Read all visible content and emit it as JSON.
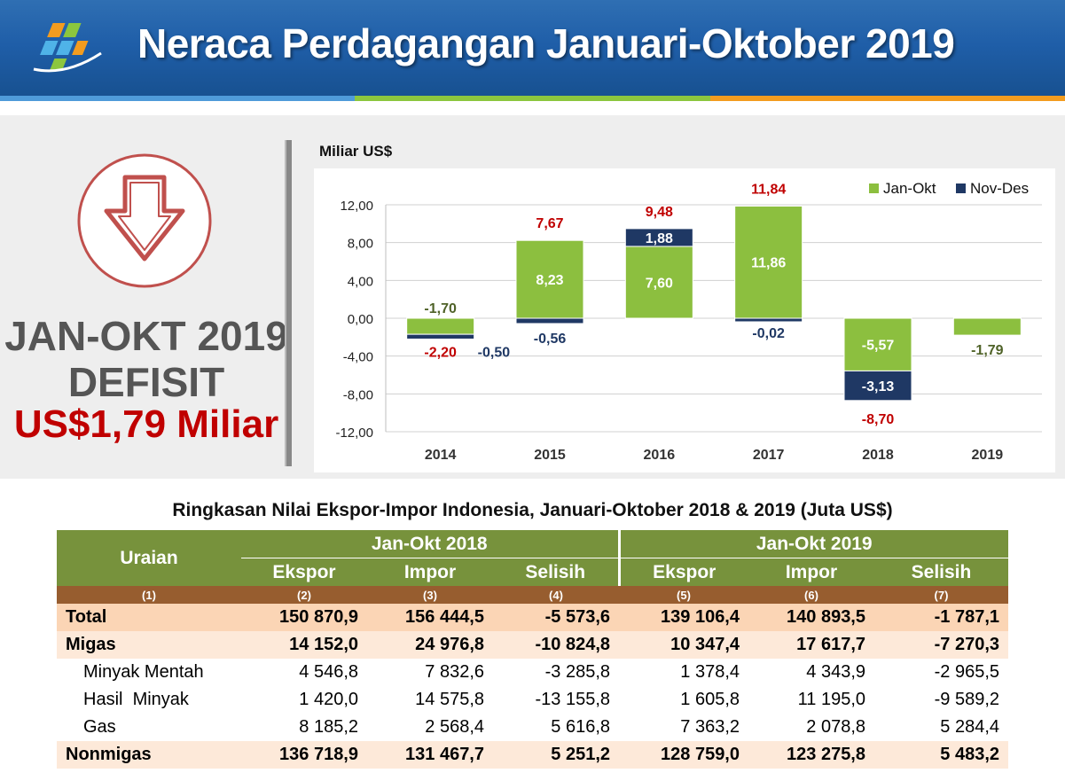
{
  "header": {
    "title": "Neraca Perdagangan Januari-Oktober 2019",
    "logo_icon": "bps-logo-icon",
    "colors": {
      "bar_blue": "#1f5ea8",
      "strip": [
        "#4f9bd9",
        "#8cc63e",
        "#f39c1f"
      ]
    }
  },
  "summary": {
    "line1": "JAN-OKT 2019",
    "line2": "DEFISIT",
    "line3": "US$1,79 Miliar",
    "icon": "down-arrow-icon",
    "colors": {
      "red": "#c00000",
      "gray": "#555555"
    }
  },
  "chart_data": {
    "type": "bar",
    "stacked": true,
    "ylabel": "Miliar US$",
    "ylim": [
      -12,
      12
    ],
    "yticks": [
      "12,00",
      "8,00",
      "4,00",
      "0,00",
      "-4,00",
      "-8,00",
      "-12,00"
    ],
    "ytick_values": [
      12,
      8,
      4,
      0,
      -4,
      -8,
      -12
    ],
    "grid": true,
    "legend_position": "top-right",
    "categories": [
      "2014",
      "2015",
      "2016",
      "2017",
      "2018",
      "2019"
    ],
    "series": [
      {
        "name": "Jan-Okt",
        "color": "#8cbf3f",
        "values": [
          -1.7,
          8.23,
          7.6,
          11.86,
          -5.57,
          -1.79
        ],
        "labels": [
          "-1,70",
          "8,23",
          "7,60",
          "11,86",
          "-5,57",
          "-1,79"
        ]
      },
      {
        "name": "Nov-Des",
        "color": "#1f3864",
        "values": [
          -0.5,
          -0.56,
          1.88,
          -0.02,
          -3.13,
          null
        ],
        "labels": [
          "-0,50",
          "-0,56",
          "1,88",
          "-0,02",
          "-3,13",
          ""
        ]
      }
    ],
    "totals": [
      -2.2,
      7.67,
      9.48,
      11.84,
      -8.7,
      null
    ],
    "total_labels": [
      "-2,20",
      "7,67",
      "9,48",
      "11,84",
      "-8,70",
      ""
    ]
  },
  "table": {
    "title": "Ringkasan Nilai Ekspor-Impor Indonesia, Januari-Oktober 2018 & 2019 (Juta US$)",
    "col_uraian": "Uraian",
    "period1": "Jan-Okt 2018",
    "period2": "Jan-Okt 2019",
    "sub_headers": [
      "Ekspor",
      "Impor",
      "Selisih",
      "Ekspor",
      "Impor",
      "Selisih"
    ],
    "col_numbers": [
      "(1)",
      "(2)",
      "(3)",
      "(4)",
      "(5)",
      "(6)",
      "(7)"
    ],
    "rows": [
      {
        "label": "Total",
        "values": [
          "150 870,9",
          "156 444,5",
          "-5 573,6",
          "139 106,4",
          "140 893,5",
          "-1 787,1"
        ]
      },
      {
        "label": "Migas",
        "values": [
          "14 152,0",
          "24 976,8",
          "-10 824,8",
          "10 347,4",
          "17 617,7",
          "-7 270,3"
        ]
      },
      {
        "label": "Minyak Mentah",
        "values": [
          "4 546,8",
          "7 832,6",
          "-3 285,8",
          "1 378,4",
          "4 343,9",
          "-2 965,5"
        ]
      },
      {
        "label": "Hasil  Minyak",
        "values": [
          "1 420,0",
          "14 575,8",
          "-13 155,8",
          "1 605,8",
          "11 195,0",
          "-9 589,2"
        ]
      },
      {
        "label": "Gas",
        "values": [
          "8 185,2",
          "2 568,4",
          "5 616,8",
          "7 363,2",
          "2 078,8",
          "5 284,4"
        ]
      },
      {
        "label": "Nonmigas",
        "values": [
          "136 718,9",
          "131 467,7",
          "5 251,2",
          "128 759,0",
          "123 275,8",
          "5 483,2"
        ]
      }
    ]
  }
}
